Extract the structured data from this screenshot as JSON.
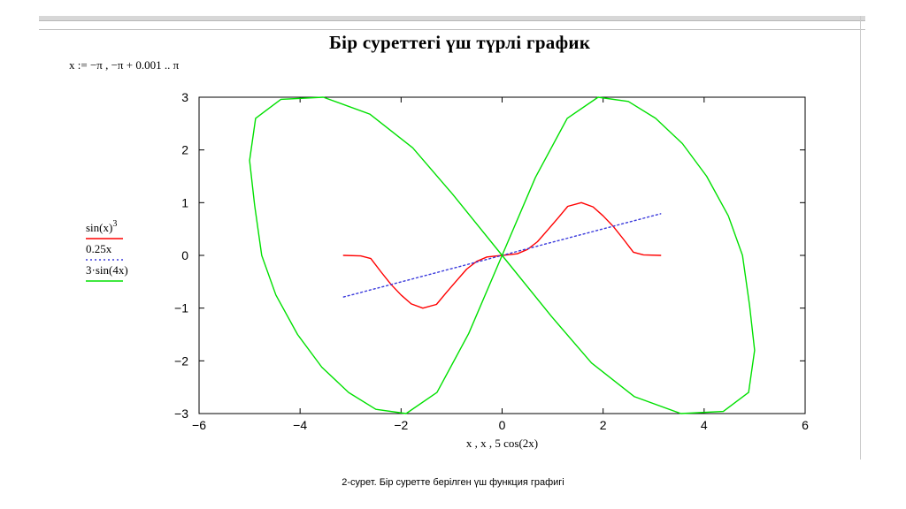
{
  "title": "Бір суреттегі үш түрлі график",
  "range_definition": "x := −π , −π + 0.001 .. π",
  "caption": "2-сурет. Бір суретте берілген үш функция графигі",
  "chart_data": {
    "type": "line",
    "title": "Бір суреттегі үш түрлі график",
    "xlabel": "x , x , 5 cos(2x)",
    "ylabel": "",
    "xlim": [
      -6,
      6
    ],
    "ylim": [
      -3,
      3
    ],
    "x_ticks": [
      -6,
      -4,
      -2,
      0,
      2,
      4,
      6
    ],
    "y_ticks": [
      3,
      2,
      1,
      0,
      -1,
      -2,
      -3
    ],
    "x_tick_labels": [
      "−6",
      "−4",
      "−2",
      "0",
      "2",
      "4",
      "6"
    ],
    "y_tick_labels": [
      "3",
      "2",
      "1",
      "0",
      "−1",
      "−2",
      "−3"
    ],
    "grid": false,
    "legend_position": "left",
    "series": [
      {
        "name": "sin(x)³",
        "legend_text": "sin(x)",
        "legend_superscript": "3",
        "color": "#ff0000",
        "style": "solid",
        "points": [
          [
            -3.14,
            0.0
          ],
          [
            -2.8,
            -0.01
          ],
          [
            -2.6,
            -0.06
          ],
          [
            -2.4,
            -0.31
          ],
          [
            -2.2,
            -0.55
          ],
          [
            -2.0,
            -0.75
          ],
          [
            -1.8,
            -0.92
          ],
          [
            -1.57,
            -1.0
          ],
          [
            -1.3,
            -0.93
          ],
          [
            -1.1,
            -0.7
          ],
          [
            -0.9,
            -0.48
          ],
          [
            -0.7,
            -0.26
          ],
          [
            -0.5,
            -0.11
          ],
          [
            -0.3,
            -0.03
          ],
          [
            0.0,
            0.0
          ],
          [
            0.3,
            0.03
          ],
          [
            0.5,
            0.11
          ],
          [
            0.7,
            0.26
          ],
          [
            0.9,
            0.48
          ],
          [
            1.1,
            0.7
          ],
          [
            1.3,
            0.93
          ],
          [
            1.57,
            1.0
          ],
          [
            1.8,
            0.92
          ],
          [
            2.0,
            0.75
          ],
          [
            2.2,
            0.55
          ],
          [
            2.4,
            0.31
          ],
          [
            2.6,
            0.06
          ],
          [
            2.8,
            0.01
          ],
          [
            3.14,
            0.0
          ]
        ]
      },
      {
        "name": "0.25x",
        "legend_text": "0.25x",
        "color": "#3a3adc",
        "style": "dotted",
        "points": [
          [
            -3.14,
            -0.79
          ],
          [
            3.14,
            0.79
          ]
        ]
      },
      {
        "name": "3·sin(4x)",
        "legend_text": "3·sin(4x)",
        "color": "#00e000",
        "style": "solid",
        "points": [
          [
            0.0,
            0.0
          ],
          [
            0.66,
            1.48
          ],
          [
            1.29,
            2.6
          ],
          [
            1.9,
            3.0
          ],
          [
            2.5,
            2.92
          ],
          [
            3.04,
            2.6
          ],
          [
            3.57,
            2.12
          ],
          [
            4.05,
            1.5
          ],
          [
            4.48,
            0.75
          ],
          [
            4.76,
            0.0
          ],
          [
            4.9,
            -0.95
          ],
          [
            5.0,
            -1.8
          ],
          [
            4.88,
            -2.6
          ],
          [
            4.38,
            -2.96
          ],
          [
            3.54,
            -3.0
          ],
          [
            2.62,
            -2.68
          ],
          [
            1.77,
            -2.04
          ],
          [
            0.98,
            -1.16
          ],
          [
            0.0,
            0.0
          ],
          [
            -0.98,
            1.16
          ],
          [
            -1.77,
            2.04
          ],
          [
            -2.62,
            2.68
          ],
          [
            -3.54,
            3.0
          ],
          [
            -4.38,
            2.96
          ],
          [
            -4.88,
            2.6
          ],
          [
            -5.0,
            1.8
          ],
          [
            -4.9,
            0.95
          ],
          [
            -4.76,
            0.0
          ],
          [
            -4.48,
            -0.75
          ],
          [
            -4.05,
            -1.5
          ],
          [
            -3.57,
            -2.12
          ],
          [
            -3.04,
            -2.6
          ],
          [
            -2.5,
            -2.92
          ],
          [
            -1.9,
            -3.0
          ],
          [
            -1.29,
            -2.6
          ],
          [
            -0.66,
            -1.48
          ],
          [
            0.0,
            0.0
          ]
        ]
      }
    ]
  }
}
